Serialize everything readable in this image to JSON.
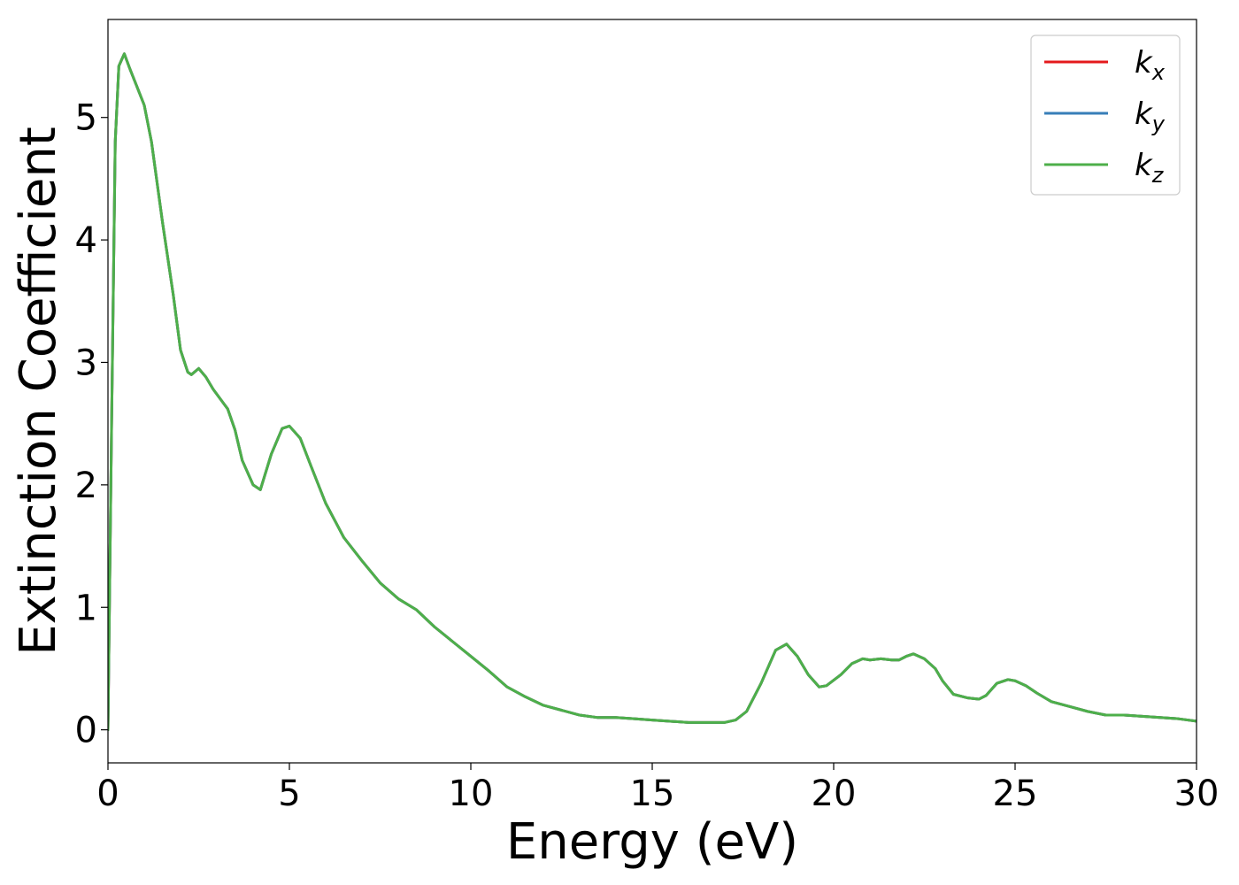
{
  "chart_data": {
    "type": "line",
    "title": "",
    "xlabel": "Energy (eV)",
    "ylabel": "Extinction Coefficient",
    "xlim": [
      0,
      30
    ],
    "ylim": [
      -0.27,
      5.8
    ],
    "xticks": [
      0,
      5,
      10,
      15,
      20,
      25,
      30
    ],
    "yticks": [
      0,
      1,
      2,
      3,
      4,
      5
    ],
    "grid": false,
    "legend_position": "top-right",
    "series": [
      {
        "name_base": "k",
        "name_sub": "x",
        "color": "#e41a1c",
        "x": [
          0,
          0.1,
          0.2,
          0.3,
          0.45,
          0.6,
          0.8,
          1.0,
          1.2,
          1.5,
          1.8,
          2.0,
          2.2,
          2.3,
          2.5,
          2.7,
          2.9,
          3.1,
          3.3,
          3.5,
          3.7,
          4.0,
          4.2,
          4.5,
          4.8,
          5.0,
          5.3,
          5.6,
          6.0,
          6.5,
          7.0,
          7.5,
          8.0,
          8.5,
          9.0,
          9.5,
          10.0,
          10.5,
          11.0,
          11.5,
          12.0,
          12.5,
          13.0,
          13.5,
          14.0,
          14.5,
          15.0,
          15.5,
          16.0,
          16.5,
          17.0,
          17.3,
          17.6,
          18.0,
          18.4,
          18.7,
          19.0,
          19.3,
          19.6,
          19.8,
          20.2,
          20.5,
          20.8,
          21.0,
          21.3,
          21.6,
          21.8,
          22.0,
          22.2,
          22.5,
          22.8,
          23.0,
          23.3,
          23.7,
          24.0,
          24.2,
          24.5,
          24.8,
          25.0,
          25.3,
          25.6,
          26.0,
          26.5,
          27.0,
          27.5,
          28.0,
          28.5,
          29.0,
          29.5,
          30.0
        ],
        "y": [
          0.0,
          2.5,
          4.8,
          5.42,
          5.52,
          5.4,
          5.25,
          5.1,
          4.8,
          4.15,
          3.55,
          3.1,
          2.92,
          2.9,
          2.95,
          2.88,
          2.78,
          2.7,
          2.62,
          2.45,
          2.2,
          2.0,
          1.96,
          2.25,
          2.46,
          2.48,
          2.38,
          2.15,
          1.85,
          1.57,
          1.38,
          1.2,
          1.07,
          0.98,
          0.84,
          0.72,
          0.6,
          0.48,
          0.35,
          0.27,
          0.2,
          0.16,
          0.12,
          0.1,
          0.1,
          0.09,
          0.08,
          0.07,
          0.06,
          0.06,
          0.06,
          0.08,
          0.15,
          0.38,
          0.65,
          0.7,
          0.6,
          0.45,
          0.35,
          0.36,
          0.45,
          0.54,
          0.58,
          0.57,
          0.58,
          0.57,
          0.57,
          0.6,
          0.62,
          0.58,
          0.5,
          0.4,
          0.29,
          0.26,
          0.25,
          0.28,
          0.38,
          0.41,
          0.4,
          0.36,
          0.3,
          0.23,
          0.19,
          0.15,
          0.12,
          0.12,
          0.11,
          0.1,
          0.09,
          0.07
        ]
      },
      {
        "name_base": "k",
        "name_sub": "y",
        "color": "#377eb8",
        "x": [
          0,
          0.1,
          0.2,
          0.3,
          0.45,
          0.6,
          0.8,
          1.0,
          1.2,
          1.5,
          1.8,
          2.0,
          2.2,
          2.3,
          2.5,
          2.7,
          2.9,
          3.1,
          3.3,
          3.5,
          3.7,
          4.0,
          4.2,
          4.5,
          4.8,
          5.0,
          5.3,
          5.6,
          6.0,
          6.5,
          7.0,
          7.5,
          8.0,
          8.5,
          9.0,
          9.5,
          10.0,
          10.5,
          11.0,
          11.5,
          12.0,
          12.5,
          13.0,
          13.5,
          14.0,
          14.5,
          15.0,
          15.5,
          16.0,
          16.5,
          17.0,
          17.3,
          17.6,
          18.0,
          18.4,
          18.7,
          19.0,
          19.3,
          19.6,
          19.8,
          20.2,
          20.5,
          20.8,
          21.0,
          21.3,
          21.6,
          21.8,
          22.0,
          22.2,
          22.5,
          22.8,
          23.0,
          23.3,
          23.7,
          24.0,
          24.2,
          24.5,
          24.8,
          25.0,
          25.3,
          25.6,
          26.0,
          26.5,
          27.0,
          27.5,
          28.0,
          28.5,
          29.0,
          29.5,
          30.0
        ],
        "y": [
          0.0,
          2.5,
          4.8,
          5.42,
          5.52,
          5.4,
          5.25,
          5.1,
          4.8,
          4.15,
          3.55,
          3.1,
          2.92,
          2.9,
          2.95,
          2.88,
          2.78,
          2.7,
          2.62,
          2.45,
          2.2,
          2.0,
          1.96,
          2.25,
          2.46,
          2.48,
          2.38,
          2.15,
          1.85,
          1.57,
          1.38,
          1.2,
          1.07,
          0.98,
          0.84,
          0.72,
          0.6,
          0.48,
          0.35,
          0.27,
          0.2,
          0.16,
          0.12,
          0.1,
          0.1,
          0.09,
          0.08,
          0.07,
          0.06,
          0.06,
          0.06,
          0.08,
          0.15,
          0.38,
          0.65,
          0.7,
          0.6,
          0.45,
          0.35,
          0.36,
          0.45,
          0.54,
          0.58,
          0.57,
          0.58,
          0.57,
          0.57,
          0.6,
          0.62,
          0.58,
          0.5,
          0.4,
          0.29,
          0.26,
          0.25,
          0.28,
          0.38,
          0.41,
          0.4,
          0.36,
          0.3,
          0.23,
          0.19,
          0.15,
          0.12,
          0.12,
          0.11,
          0.1,
          0.09,
          0.07
        ]
      },
      {
        "name_base": "k",
        "name_sub": "z",
        "color": "#4daf4a",
        "x": [
          0,
          0.1,
          0.2,
          0.3,
          0.45,
          0.6,
          0.8,
          1.0,
          1.2,
          1.5,
          1.8,
          2.0,
          2.2,
          2.3,
          2.5,
          2.7,
          2.9,
          3.1,
          3.3,
          3.5,
          3.7,
          4.0,
          4.2,
          4.5,
          4.8,
          5.0,
          5.3,
          5.6,
          6.0,
          6.5,
          7.0,
          7.5,
          8.0,
          8.5,
          9.0,
          9.5,
          10.0,
          10.5,
          11.0,
          11.5,
          12.0,
          12.5,
          13.0,
          13.5,
          14.0,
          14.5,
          15.0,
          15.5,
          16.0,
          16.5,
          17.0,
          17.3,
          17.6,
          18.0,
          18.4,
          18.7,
          19.0,
          19.3,
          19.6,
          19.8,
          20.2,
          20.5,
          20.8,
          21.0,
          21.3,
          21.6,
          21.8,
          22.0,
          22.2,
          22.5,
          22.8,
          23.0,
          23.3,
          23.7,
          24.0,
          24.2,
          24.5,
          24.8,
          25.0,
          25.3,
          25.6,
          26.0,
          26.5,
          27.0,
          27.5,
          28.0,
          28.5,
          29.0,
          29.5,
          30.0
        ],
        "y": [
          0.0,
          2.5,
          4.8,
          5.42,
          5.52,
          5.4,
          5.25,
          5.1,
          4.8,
          4.15,
          3.55,
          3.1,
          2.92,
          2.9,
          2.95,
          2.88,
          2.78,
          2.7,
          2.62,
          2.45,
          2.2,
          2.0,
          1.96,
          2.25,
          2.46,
          2.48,
          2.38,
          2.15,
          1.85,
          1.57,
          1.38,
          1.2,
          1.07,
          0.98,
          0.84,
          0.72,
          0.6,
          0.48,
          0.35,
          0.27,
          0.2,
          0.16,
          0.12,
          0.1,
          0.1,
          0.09,
          0.08,
          0.07,
          0.06,
          0.06,
          0.06,
          0.08,
          0.15,
          0.38,
          0.65,
          0.7,
          0.6,
          0.45,
          0.35,
          0.36,
          0.45,
          0.54,
          0.58,
          0.57,
          0.58,
          0.57,
          0.57,
          0.6,
          0.62,
          0.58,
          0.5,
          0.4,
          0.29,
          0.26,
          0.25,
          0.28,
          0.38,
          0.41,
          0.4,
          0.36,
          0.3,
          0.23,
          0.19,
          0.15,
          0.12,
          0.12,
          0.11,
          0.1,
          0.09,
          0.07
        ]
      }
    ]
  }
}
